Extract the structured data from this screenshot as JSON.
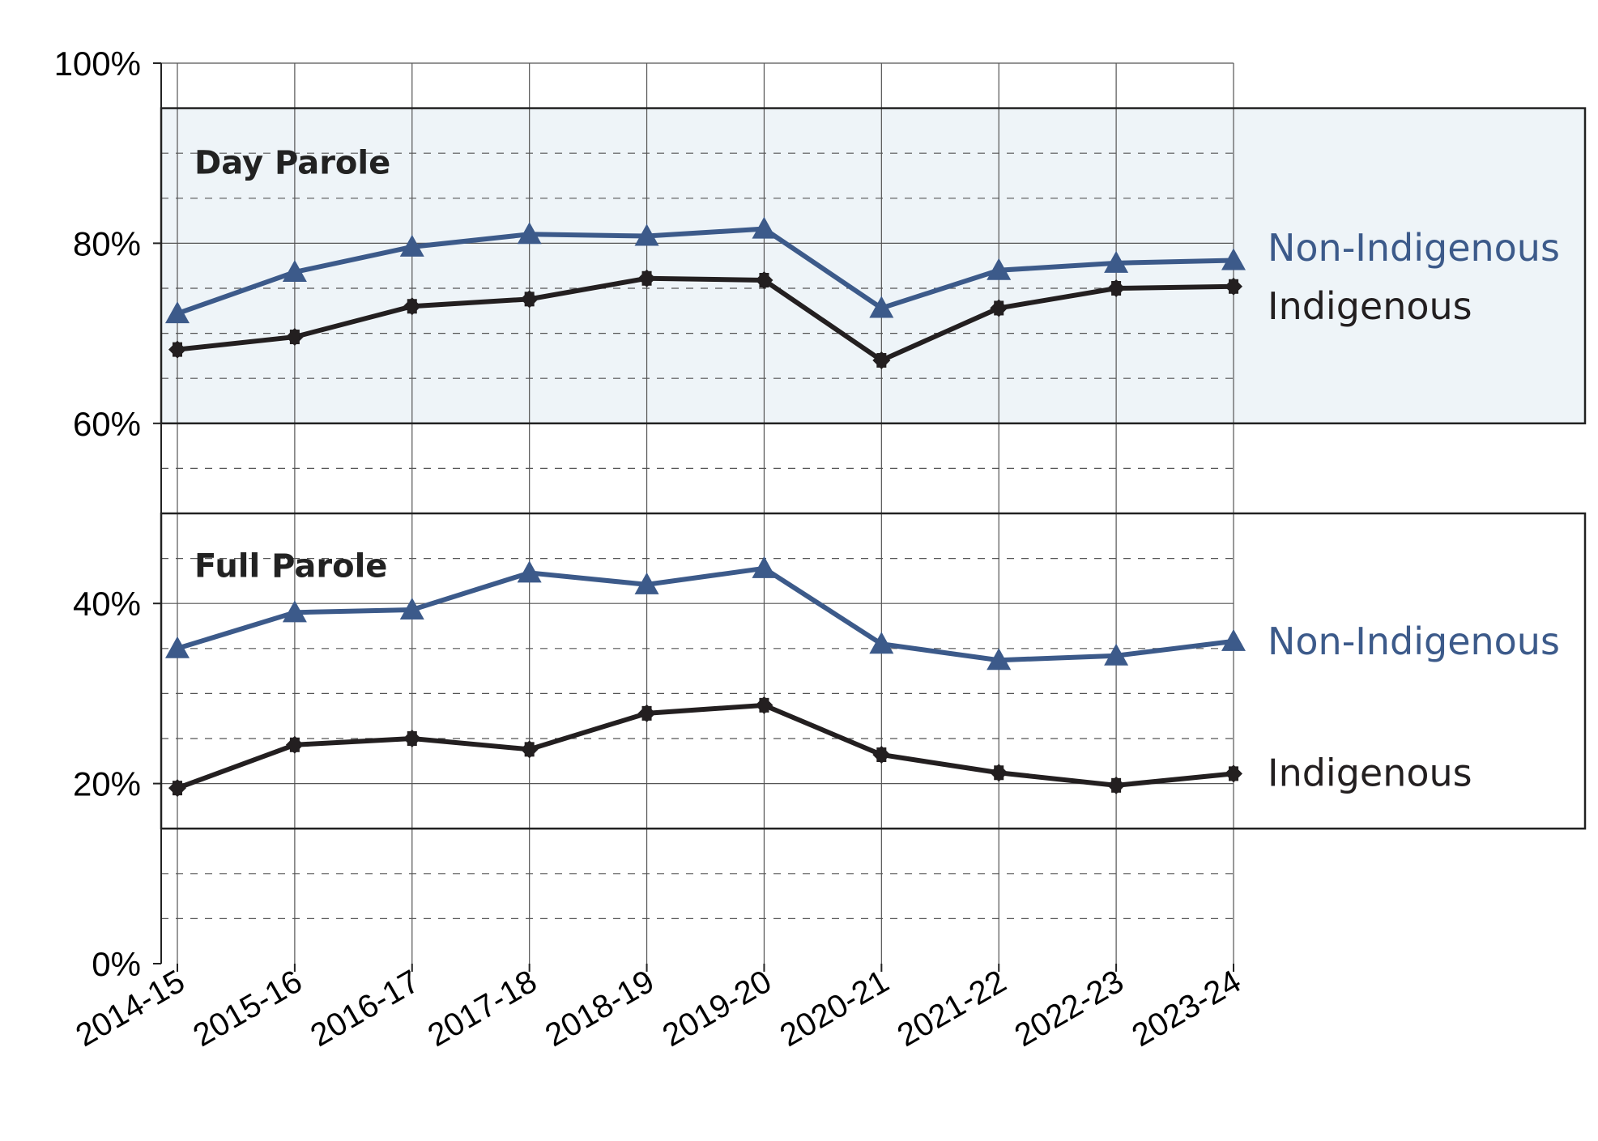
{
  "chart_data": {
    "type": "line",
    "categories": [
      "2014-15",
      "2015-16",
      "2016-17",
      "2017-18",
      "2018-19",
      "2019-20",
      "2020-21",
      "2021-22",
      "2022-23",
      "2023-24"
    ],
    "ylim": [
      0,
      100
    ],
    "y_ticks": [
      "0%",
      "20%",
      "40%",
      "60%",
      "80%",
      "100%"
    ],
    "grid": true,
    "panels": [
      {
        "title": "Day Parole",
        "background": "#eef4f8",
        "series": [
          {
            "name": "Non-Indigenous",
            "color": "#3c5a8a",
            "marker": "triangle",
            "values": [
              72.2,
              76.8,
              79.6,
              81.0,
              80.8,
              81.6,
              72.8,
              77.0,
              77.8,
              78.1
            ]
          },
          {
            "name": "Indigenous",
            "color": "#231f20",
            "marker": "diamond-cross",
            "values": [
              68.2,
              69.6,
              73.0,
              73.8,
              76.1,
              75.9,
              67.0,
              72.8,
              75.0,
              75.2
            ]
          }
        ]
      },
      {
        "title": "Full Parole",
        "background": "#ffffff",
        "series": [
          {
            "name": "Non-Indigenous",
            "color": "#3c5a8a",
            "marker": "triangle",
            "values": [
              35.0,
              39.0,
              39.3,
              43.4,
              42.1,
              43.9,
              35.5,
              33.7,
              34.2,
              35.8
            ]
          },
          {
            "name": "Indigenous",
            "color": "#231f20",
            "marker": "diamond-cross",
            "values": [
              19.5,
              24.3,
              25.0,
              23.8,
              27.8,
              28.7,
              23.2,
              21.2,
              19.8,
              21.1
            ]
          }
        ]
      }
    ]
  }
}
